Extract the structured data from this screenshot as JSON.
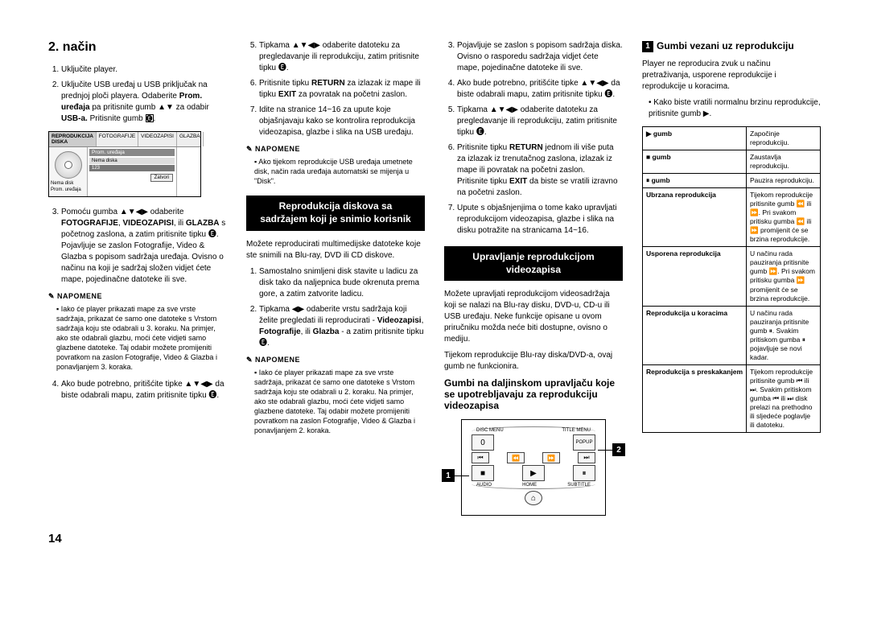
{
  "col1": {
    "heading": "2. način",
    "step1": "Uključite player.",
    "step2_a": "Uključite USB uređaj u USB priključak na prednjoj ploči playera. Odaberite ",
    "step2_b": "Prom. uređaja",
    "step2_c": " pa pritisnite gumb ▲▼ za odabir ",
    "step2_d": "USB-a.",
    "step2_e": " Pritisnite gumb ",
    "mock": {
      "tabs": [
        "REPRODUKCIJA DISKA",
        "FOTOGRAFIJE",
        "VIDEOZAPISI",
        "GLAZBA"
      ],
      "title": "Prom. uređaja",
      "rowA": "Nema diska",
      "rowB": "123",
      "leftA": "Nema disk",
      "leftB": "Prom. uređaja",
      "btn": "Zatvori"
    },
    "step3_a": "Pomoću gumba ▲▼◀▶ odaberite ",
    "step3_b": "FOTOGRAFIJE",
    "step3_c": ", ",
    "step3_d": "VIDEOZAPISI",
    "step3_e": ", ili ",
    "step3_f": "GLAZBA",
    "step3_g": " s početnog zaslona, a zatim pritisnite tipku 🅔. Pojavljuje se zaslon Fotografije, Video & Glazba s popisom sadržaja uređaja. Ovisno o načinu na koji je sadržaj složen vidjet ćete mape, pojedinačne datoteke ili sve.",
    "note1_head": "NAPOMENE",
    "note1_body": "Iako će player prikazati mape za sve vrste sadržaja, prikazat će samo one datoteke s Vrstom sadržaja koju ste odabrali u 3. koraku. Na primjer, ako ste odabrali glazbu, moći ćete vidjeti samo glazbene datoteke. Taj odabir možete promijeniti povratkom na zaslon Fotografije, Video & Glazba i ponavljanjem 3. koraka.",
    "step4": "Ako bude potrebno, pritišćite tipke ▲▼◀▶ da biste odabrali mapu, zatim pritisnite tipku 🅔."
  },
  "col2": {
    "step5": "Tipkama ▲▼◀▶ odaberite datoteku za pregledavanje ili reprodukciju, zatim pritisnite tipku 🅔.",
    "step6_a": "Pritisnite tipku ",
    "step6_b": "RETURN",
    "step6_c": " za izlazak iz mape ili tipku ",
    "step6_d": "EXIT",
    "step6_e": " za povratak na početni zaslon.",
    "step7": "Idite na stranice 14~16 za upute koje objašnjavaju kako se kontrolira reprodukcija videozapisa, glazbe i slika na USB uređaju.",
    "note2_head": "NAPOMENE",
    "note2_body": "Ako tijekom reprodukcije USB uređaja umetnete disk, način rada uređaja automatski se mijenja u \"Disk\".",
    "block1_line1": "Reprodukcija diskova sa",
    "block1_line2": "sadržajem koji je snimio korisnik",
    "p1": "Možete reproducirati multimedijske datoteke koje ste snimili na Blu-ray, DVD ili CD diskove.",
    "bstep1": "Samostalno snimljeni disk stavite u ladicu za disk tako da naljepnica bude okrenuta prema gore, a zatim zatvorite ladicu.",
    "bstep2_a": "Tipkama ◀▶ odaberite vrstu sadržaja koji želite pregledati ili reproducirati - ",
    "bstep2_b": "Videozapisi",
    "bstep2_c": ", ",
    "bstep2_d": "Fotografije",
    "bstep2_e": ", ili ",
    "bstep2_f": "Glazba",
    "bstep2_g": " - a zatim pritisnite tipku 🅔.",
    "note3_head": "NAPOMENE",
    "note3_body": "Iako će player prikazati mape za sve vrste sadržaja, prikazat će samo one datoteke s Vrstom sadržaja koju ste odabrali u 2. koraku. Na primjer, ako ste odabrali glazbu, moći ćete vidjeti samo glazbene datoteke. Taj odabir možete promijeniti povratkom na zaslon Fotografije, Video & Glazba i ponavljanjem 2. koraka."
  },
  "col3": {
    "cstep3": "Pojavljuje se zaslon s popisom sadržaja diska. Ovisno o rasporedu sadržaja vidjet ćete mape, pojedinačne datoteke ili sve.",
    "cstep4": "Ako bude potrebno, pritišćite tipke ▲▼◀▶ da biste odabrali mapu, zatim pritisnite tipku 🅔.",
    "cstep5": "Tipkama ▲▼◀▶ odaberite datoteku za pregledavanje ili reprodukciju, zatim pritisnite tipku 🅔.",
    "cstep6_a": "Pritisnite tipku ",
    "cstep6_b": "RETURN",
    "cstep6_c": " jednom ili više puta za izlazak iz trenutačnog zaslona, izlazak iz mape ili povratak na početni zaslon.",
    "cstep6_d": "Pritisnite tipku ",
    "cstep6_e": "EXIT",
    "cstep6_f": " da biste se vratili izravno na početni zaslon.",
    "cstep7": "Upute s objašnjenjima o tome kako upravljati reprodukcijom videozapisa, glazbe i slika na disku potražite na stranicama 14~16.",
    "block2_line1": "Upravljanje reprodukcijom",
    "block2_line2": "videozapisa",
    "p2": "Možete upravljati reprodukcijom videosadržaja koji se nalazi na Blu-ray disku, DVD-u, CD-u ili USB uređaju. Neke funkcije opisane u ovom priručniku možda neće biti dostupne, ovisno o mediju.",
    "p3": "Tijekom reprodukcije Blu-ray diska/DVD-a, ovaj gumb ne funkcionira.",
    "h3": "Gumbi na daljinskom upravljaču koje se upotrebljavaju za reprodukciju videozapisa",
    "remote": {
      "disc_menu": "DISC MENU",
      "title_menu": "TITLE MENU",
      "zero": "0",
      "popup": "POPUP",
      "audio": "AUDIO",
      "home": "HOME",
      "subtitle": "SUBTITLE",
      "c1": "1",
      "c2": "2"
    }
  },
  "col4": {
    "h3_a": "Gumbi vezani uz reprodukciju",
    "p4": "Player ne reproducira zvuk u načinu pretraživanja, usporene reprodukcije i reprodukcije u koracima.",
    "bullet1": "Kako biste vratili normalnu brzinu reprodukcije, pritisnite gumb ▶.",
    "table": {
      "r1a": "▶ gumb",
      "r1b": "Započinje reprodukciju.",
      "r2a": "■ gumb",
      "r2b": "Zaustavlja reprodukciju.",
      "r3a": "⏸ gumb",
      "r3b": "Pauzira reprodukciju.",
      "r4a": "Ubrzana reprodukcija",
      "r4b": "Tijekom reprodukcije pritisnite gumb ⏪ ili ⏩.\nPri svakom pritisku gumba ⏪ ili ⏩ promijenit će se brzina reprodukcije.",
      "r5a": "Usporena reprodukcija",
      "r5b": "U načinu rada pauziranja pritisnite gumb ⏩.\nPri svakom pritisku gumba ⏩ promijenit će se brzina reprodukcije.",
      "r6a": "Reprodukcija u koracima",
      "r6b": "U načinu rada pauziranja pritisnite gumb ⏸.\nSvakim pritiskom gumba ⏸ pojavljuje se novi kadar.",
      "r7a": "Reprodukcija s preskakanjem",
      "r7b": "Tijekom reprodukcije pritisnite gumb ⏮ ili ⏭.\nSvakim pritiskom gumba ⏮ ili ⏭ disk prelazi na prethodno ili sljedeće poglavlje ili datoteku."
    }
  },
  "pagenum": "14",
  "badge1": "1"
}
